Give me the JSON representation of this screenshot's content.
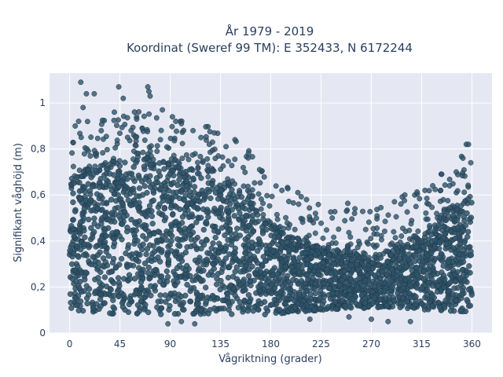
{
  "chart_data": {
    "type": "scatter",
    "title_line1": "År 1979 - 2019",
    "title_line2": "Koordinat (Sweref 99 TM): E 352433, N 6172244",
    "xlabel": "Vågriktning (grader)",
    "ylabel": "Signifikant våghöjd (m)",
    "xlim": [
      -18,
      378
    ],
    "ylim": [
      0,
      1.13
    ],
    "x_ticks": [
      0,
      45,
      90,
      135,
      180,
      225,
      270,
      315,
      360
    ],
    "x_tick_labels": [
      "0",
      "45",
      "90",
      "135",
      "180",
      "225",
      "270",
      "315",
      "360"
    ],
    "y_ticks": [
      0,
      0.2,
      0.4,
      0.6,
      0.8,
      1
    ],
    "y_tick_labels": [
      "0",
      "0,2",
      "0,4",
      "0,6",
      "0,8",
      "1"
    ],
    "grid": true,
    "marker_color": "#2f5369",
    "marker_outline": "#1c3444",
    "plot_bg": "#e5e8f2",
    "envelope_upper": [
      {
        "x": 0,
        "y": 0.62
      },
      {
        "x": 20,
        "y": 0.72
      },
      {
        "x": 45,
        "y": 0.74
      },
      {
        "x": 70,
        "y": 0.76
      },
      {
        "x": 90,
        "y": 0.73
      },
      {
        "x": 110,
        "y": 0.7
      },
      {
        "x": 135,
        "y": 0.66
      },
      {
        "x": 160,
        "y": 0.6
      },
      {
        "x": 180,
        "y": 0.47
      },
      {
        "x": 200,
        "y": 0.4
      },
      {
        "x": 225,
        "y": 0.36
      },
      {
        "x": 250,
        "y": 0.35
      },
      {
        "x": 270,
        "y": 0.32
      },
      {
        "x": 290,
        "y": 0.36
      },
      {
        "x": 315,
        "y": 0.42
      },
      {
        "x": 340,
        "y": 0.5
      },
      {
        "x": 360,
        "y": 0.6
      }
    ],
    "envelope_lower": [
      {
        "x": 0,
        "y": 0.1
      },
      {
        "x": 45,
        "y": 0.08
      },
      {
        "x": 90,
        "y": 0.08
      },
      {
        "x": 135,
        "y": 0.08
      },
      {
        "x": 180,
        "y": 0.08
      },
      {
        "x": 225,
        "y": 0.1
      },
      {
        "x": 270,
        "y": 0.11
      },
      {
        "x": 315,
        "y": 0.1
      },
      {
        "x": 360,
        "y": 0.09
      }
    ],
    "outliers": [
      {
        "x": 10,
        "y": 1.09
      },
      {
        "x": 15,
        "y": 1.04
      },
      {
        "x": 22,
        "y": 1.04
      },
      {
        "x": 12,
        "y": 0.98
      },
      {
        "x": 5,
        "y": 0.9
      },
      {
        "x": 8,
        "y": 0.92
      },
      {
        "x": 40,
        "y": 0.96
      },
      {
        "x": 44,
        "y": 1.07
      },
      {
        "x": 48,
        "y": 1.02
      },
      {
        "x": 60,
        "y": 0.93
      },
      {
        "x": 70,
        "y": 1.07
      },
      {
        "x": 71,
        "y": 1.05
      },
      {
        "x": 72,
        "y": 1.03
      },
      {
        "x": 83,
        "y": 0.97
      },
      {
        "x": 92,
        "y": 0.94
      },
      {
        "x": 95,
        "y": 0.92
      },
      {
        "x": 100,
        "y": 0.91
      },
      {
        "x": 55,
        "y": 0.88
      },
      {
        "x": 65,
        "y": 0.89
      },
      {
        "x": 125,
        "y": 0.82
      },
      {
        "x": 140,
        "y": 0.81
      },
      {
        "x": 148,
        "y": 0.84
      },
      {
        "x": 160,
        "y": 0.78
      },
      {
        "x": 170,
        "y": 0.71
      },
      {
        "x": 190,
        "y": 0.62
      },
      {
        "x": 205,
        "y": 0.56
      },
      {
        "x": 212,
        "y": 0.58
      },
      {
        "x": 220,
        "y": 0.52
      },
      {
        "x": 235,
        "y": 0.5
      },
      {
        "x": 255,
        "y": 0.52
      },
      {
        "x": 265,
        "y": 0.45
      },
      {
        "x": 275,
        "y": 0.43
      },
      {
        "x": 290,
        "y": 0.44
      },
      {
        "x": 300,
        "y": 0.6
      },
      {
        "x": 310,
        "y": 0.55
      },
      {
        "x": 318,
        "y": 0.62
      },
      {
        "x": 325,
        "y": 0.64
      },
      {
        "x": 333,
        "y": 0.69
      },
      {
        "x": 340,
        "y": 0.64
      },
      {
        "x": 346,
        "y": 0.7
      },
      {
        "x": 355,
        "y": 0.82
      },
      {
        "x": 357,
        "y": 0.82
      },
      {
        "x": 352,
        "y": 0.76
      },
      {
        "x": 359,
        "y": 0.74
      },
      {
        "x": 88,
        "y": 0.04
      },
      {
        "x": 100,
        "y": 0.05
      },
      {
        "x": 112,
        "y": 0.04
      },
      {
        "x": 270,
        "y": 0.06
      },
      {
        "x": 285,
        "y": 0.05
      },
      {
        "x": 305,
        "y": 0.05
      },
      {
        "x": 250,
        "y": 0.07
      },
      {
        "x": 215,
        "y": 0.06
      }
    ]
  }
}
